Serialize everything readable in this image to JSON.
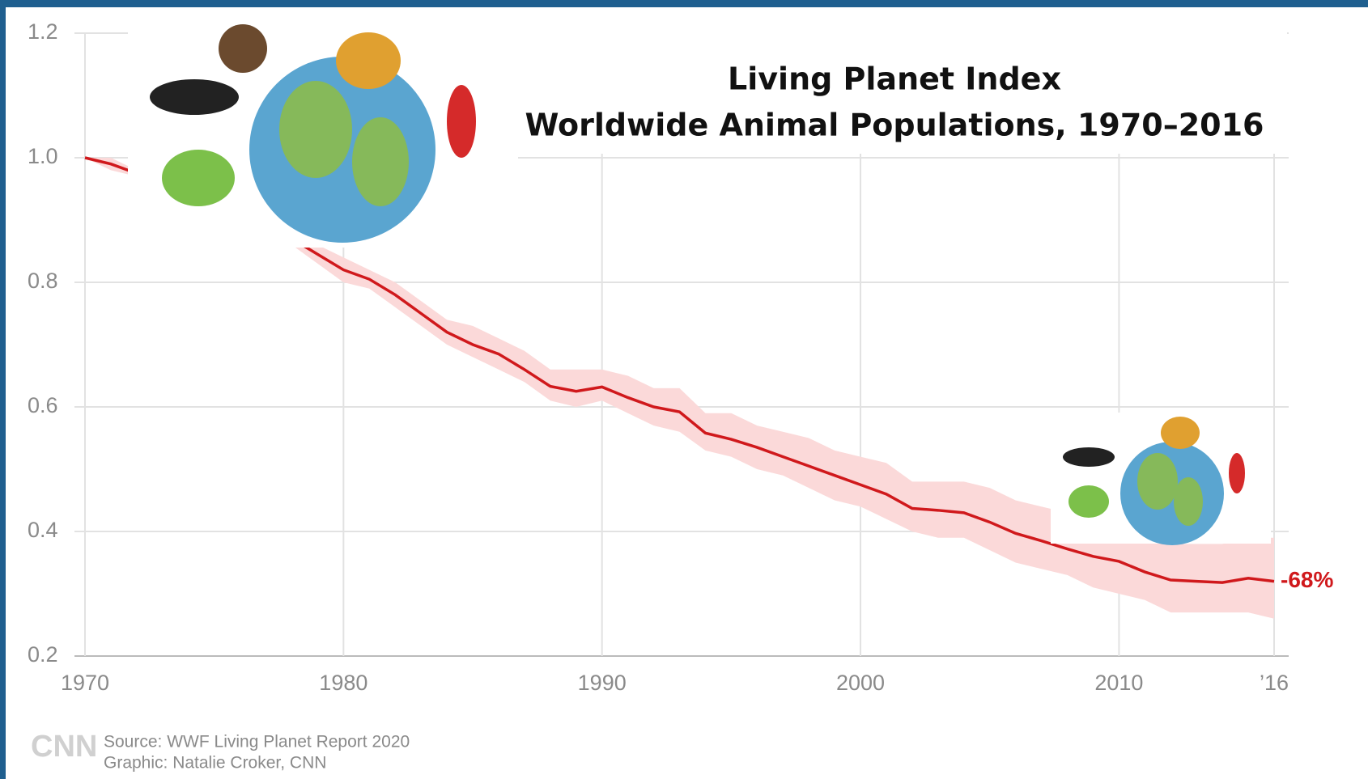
{
  "chart_data": {
    "type": "line",
    "title": "Living Planet Index",
    "subtitle": "Worldwide Animal Populations, 1970–2016",
    "x": [
      1970,
      1971,
      1972,
      1973,
      1974,
      1975,
      1976,
      1977,
      1978,
      1979,
      1980,
      1981,
      1982,
      1983,
      1984,
      1985,
      1986,
      1987,
      1988,
      1989,
      1990,
      1991,
      1992,
      1993,
      1994,
      1995,
      1996,
      1997,
      1998,
      1999,
      2000,
      2001,
      2002,
      2003,
      2004,
      2005,
      2006,
      2007,
      2008,
      2009,
      2010,
      2011,
      2012,
      2013,
      2014,
      2015,
      2016
    ],
    "values": [
      1.0,
      0.99,
      0.975,
      0.96,
      0.945,
      0.93,
      0.91,
      0.89,
      0.87,
      0.845,
      0.82,
      0.805,
      0.78,
      0.75,
      0.72,
      0.7,
      0.685,
      0.66,
      0.633,
      0.625,
      0.632,
      0.615,
      0.6,
      0.592,
      0.558,
      0.548,
      0.535,
      0.52,
      0.505,
      0.49,
      0.475,
      0.46,
      0.437,
      0.434,
      0.43,
      0.415,
      0.397,
      0.385,
      0.372,
      0.36,
      0.352,
      0.335,
      0.322,
      0.32,
      0.318,
      0.325,
      0.32
    ],
    "band_upper": [
      1.0,
      1.0,
      0.98,
      0.97,
      0.96,
      0.94,
      0.92,
      0.9,
      0.89,
      0.86,
      0.84,
      0.82,
      0.8,
      0.77,
      0.74,
      0.73,
      0.71,
      0.69,
      0.66,
      0.66,
      0.66,
      0.65,
      0.63,
      0.63,
      0.59,
      0.59,
      0.57,
      0.56,
      0.55,
      0.53,
      0.52,
      0.51,
      0.48,
      0.48,
      0.48,
      0.47,
      0.45,
      0.44,
      0.43,
      0.42,
      0.41,
      0.39,
      0.38,
      0.38,
      0.38,
      0.39,
      0.39
    ],
    "band_lower": [
      1.0,
      0.98,
      0.97,
      0.95,
      0.94,
      0.92,
      0.9,
      0.88,
      0.86,
      0.83,
      0.8,
      0.79,
      0.76,
      0.73,
      0.7,
      0.68,
      0.66,
      0.64,
      0.61,
      0.6,
      0.61,
      0.59,
      0.57,
      0.56,
      0.53,
      0.52,
      0.5,
      0.49,
      0.47,
      0.45,
      0.44,
      0.42,
      0.4,
      0.39,
      0.39,
      0.37,
      0.35,
      0.34,
      0.33,
      0.31,
      0.3,
      0.29,
      0.27,
      0.27,
      0.27,
      0.27,
      0.26
    ],
    "color": "#d0191c",
    "band_color": "#fbd9d9",
    "annotation": "-68%",
    "xlim": [
      1970,
      2016
    ],
    "xticks": [
      1970,
      1980,
      1990,
      2000,
      2010,
      {
        "value": 2016,
        "label": "’16"
      }
    ],
    "ylim": [
      0.2,
      1.2
    ],
    "yticks": [
      0.2,
      0.4,
      0.6,
      0.8,
      {
        "value": 1.0,
        "label": "1.0"
      },
      1.2
    ],
    "grid": true,
    "source": "Source: WWF Living Planet Report 2020",
    "credit": "Graphic: Natalie Croker, CNN",
    "logo": "CNN"
  }
}
